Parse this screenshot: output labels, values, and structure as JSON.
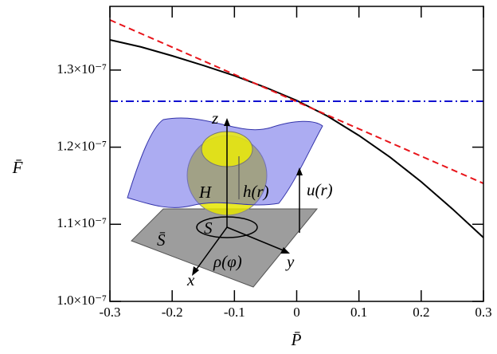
{
  "chart_data": {
    "type": "line",
    "x_label": "P̄",
    "y_label": "F̄",
    "x": [
      -0.3,
      -0.25,
      -0.2,
      -0.15,
      -0.1,
      -0.05,
      0,
      0.05,
      0.1,
      0.15,
      0.2,
      0.25,
      0.3
    ],
    "series": [
      {
        "color": "#000000",
        "dash": "",
        "values": [
          1.3392e-07,
          1.33e-07,
          1.3185e-07,
          1.306e-07,
          1.2927e-07,
          1.2775e-07,
          1.2606e-07,
          1.24e-07,
          1.2151e-07,
          1.187e-07,
          1.1551e-07,
          1.12e-07,
          1.0827e-07
        ]
      },
      {
        "color": "#e8141a",
        "dash": "8 5",
        "values": [
          1.365e-07,
          1.3473e-07,
          1.3297e-07,
          1.312e-07,
          1.2943e-07,
          1.2767e-07,
          1.259e-07,
          1.2413e-07,
          1.2237e-07,
          1.206e-07,
          1.1883e-07,
          1.1707e-07,
          1.153e-07
        ]
      },
      {
        "color": "#1010d0",
        "dash": "10 4 2 4",
        "values": [
          1.2596e-07,
          1.2596e-07,
          1.2596e-07,
          1.2596e-07,
          1.2596e-07,
          1.2596e-07,
          1.2596e-07,
          1.2596e-07,
          1.2596e-07,
          1.2596e-07,
          1.2596e-07,
          1.2596e-07,
          1.2596e-07
        ]
      }
    ],
    "xlim": [
      -0.3,
      0.3
    ],
    "xticks": [
      -0.3,
      -0.2,
      -0.1,
      0,
      0.1,
      0.2,
      0.3
    ],
    "ylim": [
      1e-07,
      1.3826e-07
    ],
    "yticks": [
      {
        "value": 1e-07,
        "label": "1.0×10⁻⁷"
      },
      {
        "value": 1.1e-07,
        "label": "1.1×10⁻⁷"
      },
      {
        "value": 1.2e-07,
        "label": "1.2×10⁻⁷"
      },
      {
        "value": 1.3e-07,
        "label": "1.3×10⁻⁷"
      }
    ],
    "annotations": [
      "z",
      "H",
      "h(r)",
      "u(r)",
      "S",
      "S̄",
      "ρ(φ)",
      "x",
      "y"
    ]
  }
}
